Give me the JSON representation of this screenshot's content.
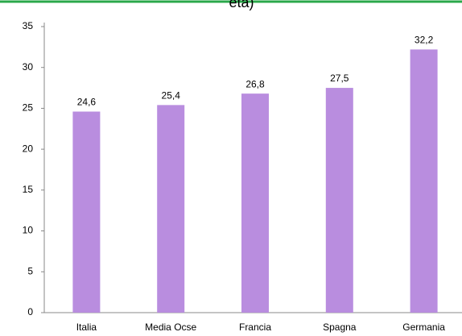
{
  "chart_data": {
    "type": "bar",
    "title": "età)",
    "categories": [
      "Italia",
      "Media Ocse",
      "Francia",
      "Spagna",
      "Germania"
    ],
    "values": [
      24.6,
      25.4,
      26.8,
      27.5,
      32.2
    ],
    "value_labels": [
      "24,6",
      "25,4",
      "26,8",
      "27,5",
      "32,2"
    ],
    "color": "#b98ddf",
    "ylim": [
      0,
      35
    ],
    "yticks": [
      0,
      5,
      10,
      15,
      20,
      25,
      30,
      35
    ],
    "grid": false
  }
}
